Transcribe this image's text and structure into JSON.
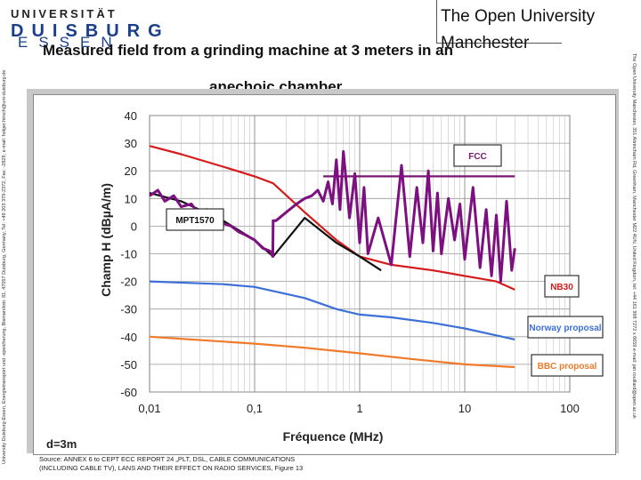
{
  "header": {
    "university_line1": "UNIVERSITÄT",
    "university_line2": "DUISBURG",
    "university_line3": "ESSEN",
    "partner_line1": "The Open University",
    "partner_line2": "Manchester",
    "title_line1": "Measured field  from a grinding machine at 3 meters in an",
    "title_line2": "anechoic chamber"
  },
  "side_text": {
    "left": "University Duisburg-Essen, Energietransport und -speicherung, Bismarckstr. 81, 47057 Duisburg, Germany, Tel: +49 203 379-2372, Fax: -2829, e-mail: holger.hirsch@uni-duisburg.de",
    "right": "The Open University Manchester, 351 Altrincham Rd, Greenham, Manchester M22 4UN, United Kingdom, tel: +44 161 998 7272 x 6659 e-mail: jan.rouillard@open.ac.uk"
  },
  "caption": {
    "line1": "Source: ANNEX 6 to CEPT ECC REPORT 24 „PLT, DSL, CABLE COMMUNICATIONS",
    "line2": "(INCLUDING CABLE TV), LANS AND THEIR EFFECT ON RADIO SERVICES, Figure 13"
  },
  "chart_data": {
    "type": "line",
    "title": "Measured field from a grinding machine at 3 meters in an anechoic chamber",
    "xlabel": "Fréquence (MHz)",
    "ylabel": "Champ H (dBµA/m)",
    "xscale": "log",
    "xlim": [
      0.01,
      100
    ],
    "ylim": [
      -60,
      40
    ],
    "xticks": [
      0.01,
      0.1,
      1,
      10,
      100
    ],
    "xtick_labels": [
      "0,01",
      "0,1",
      "1",
      "10",
      "100"
    ],
    "yticks": [
      40,
      30,
      20,
      10,
      0,
      -10,
      -20,
      -30,
      -40,
      -50,
      -60
    ],
    "grid": true,
    "annotation": "d=3m",
    "series": [
      {
        "name": "FCC",
        "color": "#7a1570",
        "x": [
          0.45,
          30
        ],
        "y": [
          18,
          18
        ]
      },
      {
        "name": "NB30",
        "color": "#d71b1b",
        "x": [
          0.01,
          0.02,
          0.05,
          0.1,
          0.15,
          0.3,
          0.6,
          1,
          2,
          5,
          10,
          20,
          30
        ],
        "y": [
          29,
          26,
          21.5,
          18,
          15.5,
          5,
          -5,
          -11,
          -14,
          -16,
          -18,
          -20,
          -23
        ]
      },
      {
        "name": "MPT1570",
        "color": "#111111",
        "x": [
          0.01,
          0.02,
          0.05,
          0.1,
          0.15,
          0.3,
          0.6,
          1,
          1.6
        ],
        "y": [
          12,
          9,
          2,
          -5,
          -11,
          3,
          -6,
          -11,
          -16
        ]
      },
      {
        "name": "Norway proposal",
        "color": "#3d6fd8",
        "x": [
          0.01,
          0.05,
          0.1,
          0.3,
          0.6,
          1,
          2,
          5,
          10,
          30
        ],
        "y": [
          -20,
          -21,
          -22,
          -26,
          -30,
          -32,
          -33,
          -35,
          -37,
          -41
        ]
      },
      {
        "name": "BBC proposal",
        "color": "#f07a2a",
        "x": [
          0.01,
          0.1,
          0.3,
          1,
          3,
          10,
          30
        ],
        "y": [
          -40,
          -42.5,
          -44,
          -46,
          -48,
          -50,
          -51
        ]
      },
      {
        "name": "Measured field",
        "color": "#7d0f80",
        "x": [
          0.01,
          0.012,
          0.014,
          0.017,
          0.02,
          0.025,
          0.03,
          0.035,
          0.04,
          0.05,
          0.06,
          0.07,
          0.08,
          0.1,
          0.12,
          0.14,
          0.149,
          0.15,
          0.16,
          0.2,
          0.25,
          0.3,
          0.35,
          0.4,
          0.45,
          0.5,
          0.55,
          0.6,
          0.65,
          0.7,
          0.8,
          0.9,
          1.0,
          1.1,
          1.2,
          1.5,
          2.0,
          2.5,
          3.0,
          3.5,
          4.0,
          4.5,
          5.0,
          5.5,
          6.0,
          7.0,
          8.0,
          9.0,
          10,
          12,
          14,
          16,
          18,
          20,
          22,
          25,
          28,
          30
        ],
        "y": [
          11,
          13,
          9,
          11,
          7,
          8,
          4,
          6,
          2,
          1,
          0,
          -2,
          -3,
          -5,
          -8,
          -9,
          -11,
          2,
          2,
          5,
          8,
          10,
          11,
          13,
          9,
          16,
          8,
          24,
          6,
          27,
          3,
          19,
          -6,
          14,
          -10,
          3,
          -14,
          22,
          -11,
          14,
          -6,
          20,
          -9,
          12,
          -10,
          10,
          -5,
          8,
          -12,
          14,
          -15,
          6,
          -18,
          4,
          -20,
          9,
          -16,
          -8
        ]
      }
    ],
    "legend_labels": [
      "FCC",
      "MPT1570",
      "NB30",
      "Norway proposal",
      "BBC proposal"
    ]
  }
}
